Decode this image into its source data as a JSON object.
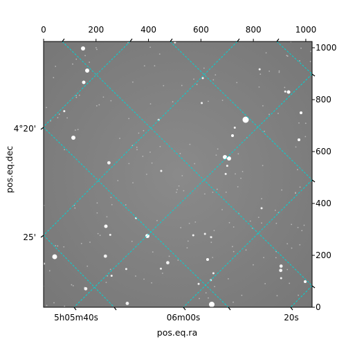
{
  "chart_data": {
    "type": "scatter",
    "title": "",
    "xlabel": "pos.eq.ra",
    "ylabel": "pos.eq.dec",
    "x_pixel_axis": {
      "ticks": [
        0,
        200,
        400,
        600,
        800,
        1000
      ],
      "lim": [
        0,
        1024
      ]
    },
    "y_pixel_axis": {
      "ticks": [
        0,
        200,
        400,
        600,
        800,
        1000
      ],
      "lim": [
        0,
        1024
      ]
    },
    "ra_ticks": [
      "5h05m40s",
      "06m00s",
      "20s"
    ],
    "dec_ticks": [
      "4°20'",
      "25'"
    ],
    "grid": "on",
    "grid_color": "#00d5d5",
    "image_style": "grayscale star field"
  }
}
